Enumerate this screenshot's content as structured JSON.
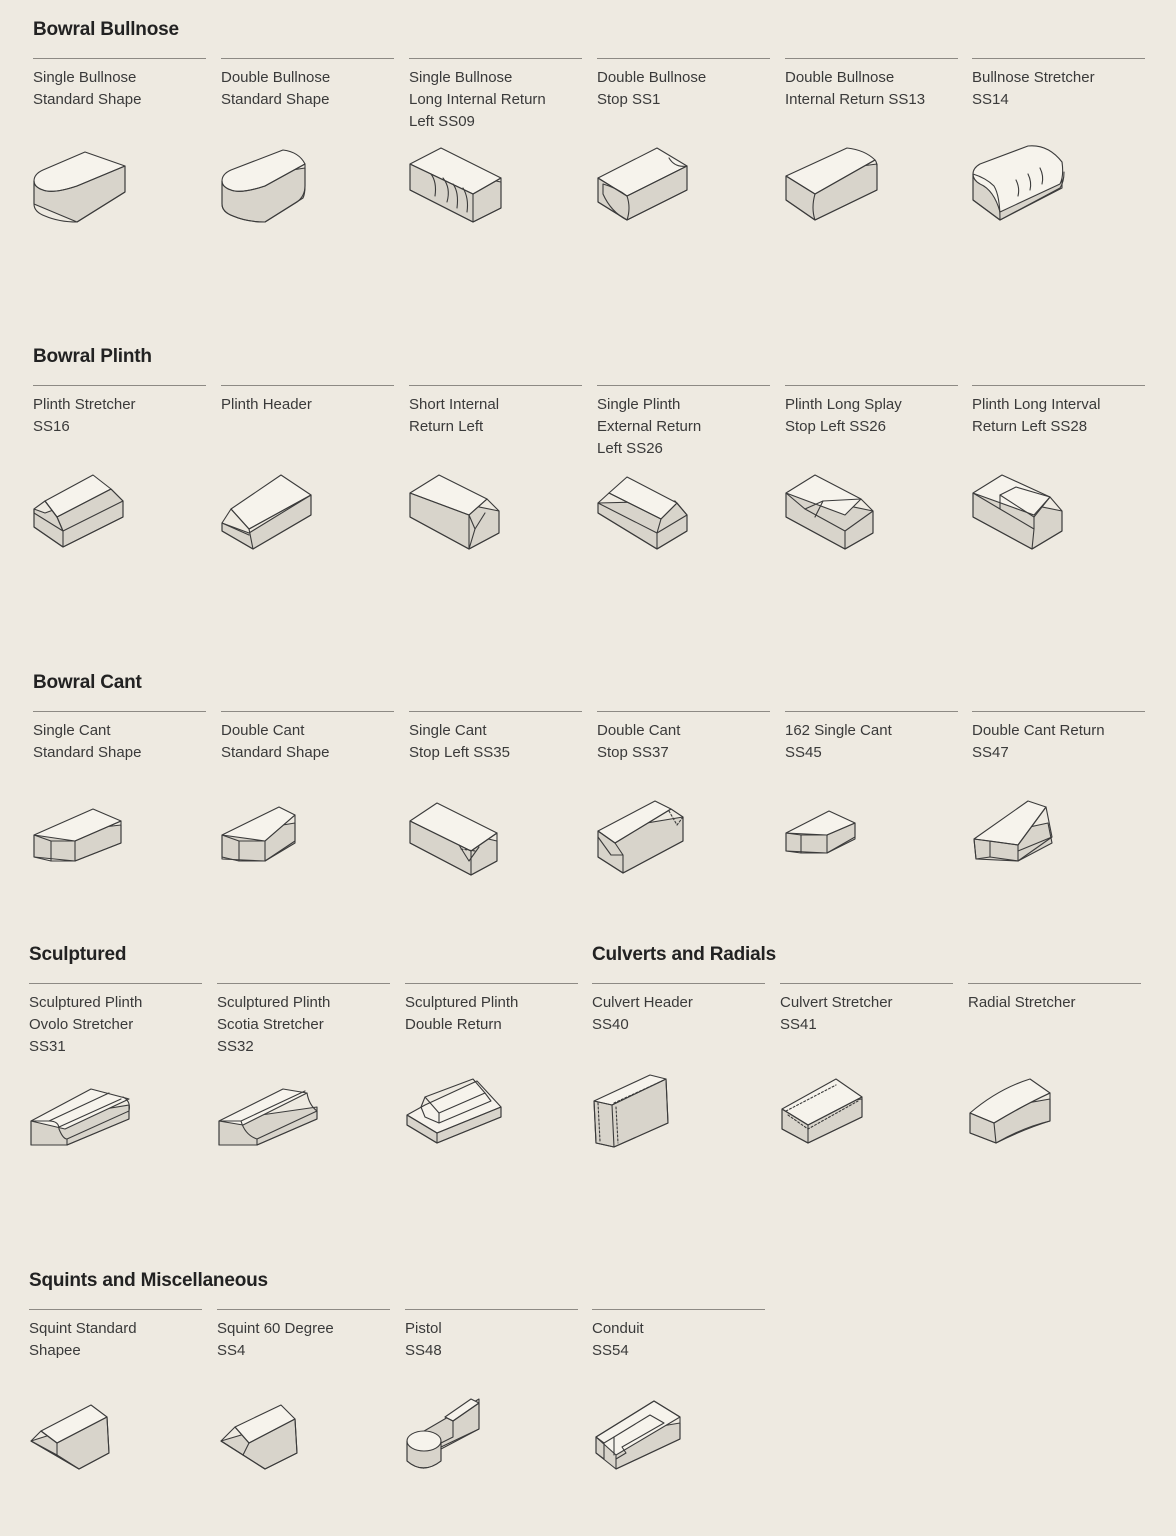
{
  "sections": {
    "bullnose": {
      "title": "Bowral Bullnose",
      "items": [
        {
          "label": "Single Bullnose\nStandard Shape",
          "icon": "single-bullnose-brick-icon"
        },
        {
          "label": "Double Bullnose\nStandard Shape",
          "icon": "double-bullnose-brick-icon"
        },
        {
          "label": "Single Bullnose\nLong Internal Return\nLeft SS09",
          "icon": "bullnose-internal-return-icon"
        },
        {
          "label": "Double Bullnose\nStop SS1",
          "icon": "bullnose-stop-icon"
        },
        {
          "label": "Double Bullnose\nInternal Return SS13",
          "icon": "double-bullnose-internal-return-icon"
        },
        {
          "label": "Bullnose Stretcher\nSS14",
          "icon": "bullnose-stretcher-icon"
        }
      ]
    },
    "plinth": {
      "title": "Bowral Plinth",
      "items": [
        {
          "label": "Plinth Stretcher\nSS16",
          "icon": "plinth-stretcher-icon"
        },
        {
          "label": "Plinth Header",
          "icon": "plinth-header-icon"
        },
        {
          "label": "Short Internal\nReturn Left",
          "icon": "short-internal-return-icon"
        },
        {
          "label": "Single Plinth\nExternal Return\nLeft SS26",
          "icon": "plinth-external-return-icon"
        },
        {
          "label": "Plinth Long Splay\nStop Left SS26",
          "icon": "plinth-splay-stop-icon"
        },
        {
          "label": "Plinth Long Interval\nReturn Left SS28",
          "icon": "plinth-long-return-icon"
        }
      ]
    },
    "cant": {
      "title": "Bowral Cant",
      "items": [
        {
          "label": "Single Cant\nStandard Shape",
          "icon": "single-cant-icon"
        },
        {
          "label": "Double Cant\nStandard Shape",
          "icon": "double-cant-icon"
        },
        {
          "label": "Single Cant\nStop Left SS35",
          "icon": "single-cant-stop-icon"
        },
        {
          "label": "Double Cant\nStop SS37",
          "icon": "double-cant-stop-icon"
        },
        {
          "label": "162 Single Cant\nSS45",
          "icon": "single-cant-162-icon"
        },
        {
          "label": "Double Cant Return\nSS47",
          "icon": "double-cant-return-icon"
        }
      ]
    },
    "sculptured": {
      "title": "Sculptured",
      "items": [
        {
          "label": "Sculptured Plinth\nOvolo Stretcher\nSS31",
          "icon": "ovolo-stretcher-icon"
        },
        {
          "label": "Sculptured Plinth\nScotia Stretcher\nSS32",
          "icon": "scotia-stretcher-icon"
        },
        {
          "label": "Sculptured Plinth\nDouble Return",
          "icon": "sculptured-double-return-icon"
        }
      ]
    },
    "culverts": {
      "title": "Culverts and Radials",
      "items": [
        {
          "label": "Culvert Header\nSS40",
          "icon": "culvert-header-icon"
        },
        {
          "label": "Culvert Stretcher\nSS41",
          "icon": "culvert-stretcher-icon"
        },
        {
          "label": "Radial Stretcher",
          "icon": "radial-stretcher-icon"
        }
      ]
    },
    "squints": {
      "title": "Squints and Miscellaneous",
      "items": [
        {
          "label": "Squint Standard\nShapee",
          "icon": "squint-standard-icon"
        },
        {
          "label": "Squint 60 Degree\nSS4",
          "icon": "squint-60-icon"
        },
        {
          "label": "Pistol\nSS48",
          "icon": "pistol-brick-icon"
        },
        {
          "label": "Conduit\nSS54",
          "icon": "conduit-brick-icon"
        }
      ]
    }
  }
}
